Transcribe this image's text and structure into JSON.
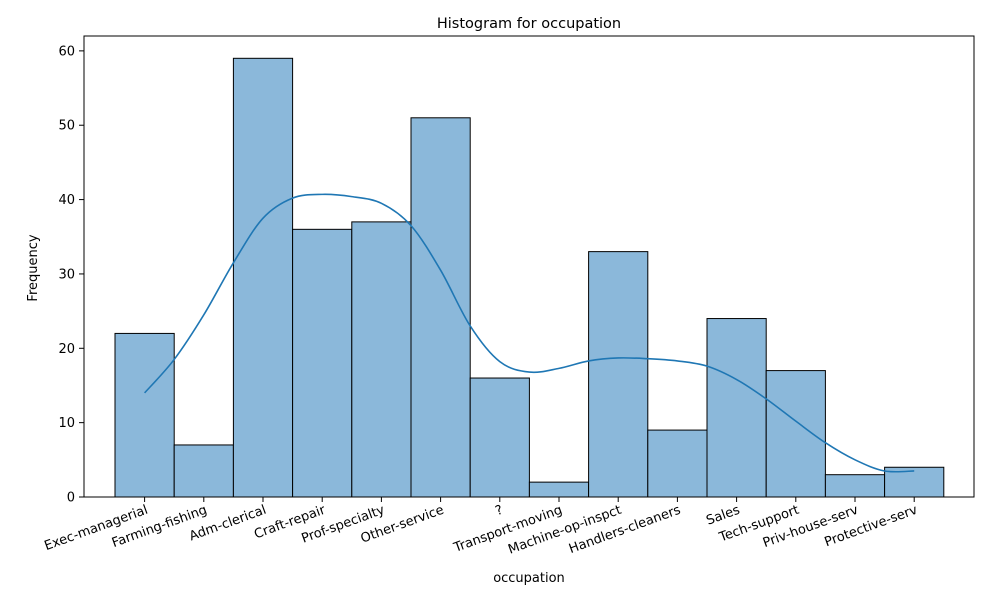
{
  "chart_data": {
    "type": "bar",
    "title": "Histogram for occupation",
    "xlabel": "occupation",
    "ylabel": "Frequency",
    "categories": [
      "Exec-managerial",
      "Farming-fishing",
      "Adm-clerical",
      "Craft-repair",
      "Prof-specialty",
      "Other-service",
      "?",
      "Transport-moving",
      "Machine-op-inspct",
      "Handlers-cleaners",
      "Sales",
      "Tech-support",
      "Priv-house-serv",
      "Protective-serv"
    ],
    "values": [
      22,
      7,
      59,
      36,
      37,
      51,
      16,
      2,
      33,
      9,
      24,
      17,
      3,
      4
    ],
    "ylim": [
      0,
      62
    ],
    "yticks": [
      0,
      10,
      20,
      30,
      40,
      50,
      60
    ],
    "kde": {
      "x": [
        0,
        0.5,
        1,
        1.5,
        2,
        2.5,
        3,
        3.5,
        4,
        4.5,
        5,
        5.5,
        6,
        6.5,
        7,
        7.5,
        8,
        8.5,
        9,
        9.5,
        10,
        10.5,
        11,
        11.5,
        12,
        12.5,
        13
      ],
      "y": [
        14,
        18.5,
        24.5,
        31.5,
        37.5,
        40.2,
        40.7,
        40.4,
        39.5,
        36.5,
        30.5,
        23,
        18.2,
        16.8,
        17.3,
        18.3,
        18.7,
        18.6,
        18.3,
        17.6,
        15.8,
        13.2,
        10.2,
        7.3,
        5,
        3.5,
        3.5
      ]
    },
    "grid": false,
    "legend": "none",
    "colors": {
      "bar_fill": "#8bb8da",
      "bar_edge": "#000000",
      "kde_line": "#1f77b4"
    }
  }
}
